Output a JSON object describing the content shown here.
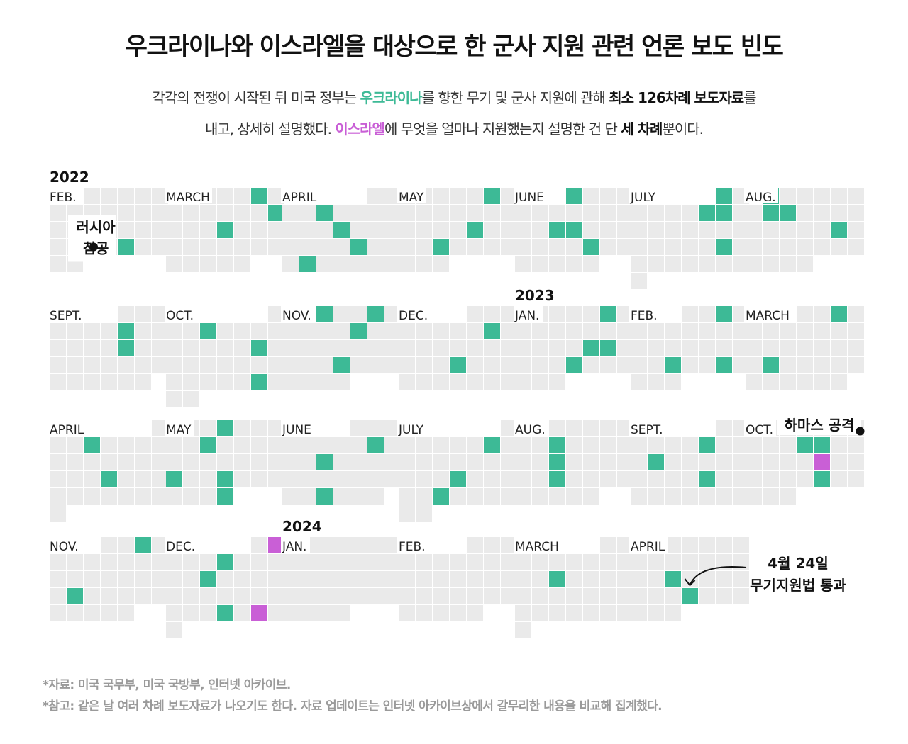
{
  "title": "우크라이나와 이스라엘을 대상으로 한 군사 지원 관련 언론 보도 빈도",
  "subtitle": {
    "l1_a": "각각의 전쟁이 시작된 뒤 미국 정부는 ",
    "l1_b": "우크라이나",
    "l1_c": "를 향한 무기 및 군사 지원에 관해 ",
    "l1_d": "최소 126차례 보도자료",
    "l1_e": "를",
    "l2_a": "내고, 상세히 설명했다. ",
    "l2_b": "이스라엘",
    "l2_c": "에 무엇을 얼마나 지원했는지 설명한 건 단 ",
    "l2_d": "세 차례",
    "l2_e": "뿐이다."
  },
  "colors": {
    "ukraine": "#3dba96",
    "israel": "#c95fd6",
    "empty": "#eaeaea",
    "background": "#ffffff"
  },
  "chart_data": {
    "type": "heatmap",
    "description_note": "Calendar heatmap; each month is a Sun-first week grid of days; green = Ukraine press release day, purple = Israel press release day",
    "series": [
      {
        "name": "우크라이나",
        "color": "#3dba96"
      },
      {
        "name": "이스라엘",
        "color": "#c95fd6"
      }
    ],
    "months": [
      {
        "label": "FEB.",
        "year": 2022,
        "month": 2,
        "year_label": "2022",
        "ukraine": [
          24
        ],
        "israel": []
      },
      {
        "label": "MARCH",
        "year": 2022,
        "month": 3,
        "ukraine": [
          4,
          12,
          16
        ],
        "israel": []
      },
      {
        "label": "APRIL",
        "year": 2022,
        "month": 4,
        "ukraine": [
          5,
          13,
          21,
          25
        ],
        "israel": []
      },
      {
        "label": "MAY",
        "year": 2022,
        "month": 5,
        "ukraine": [
          6,
          19,
          24
        ],
        "israel": []
      },
      {
        "label": "JUNE",
        "year": 2022,
        "month": 6,
        "ukraine": [
          1,
          14,
          15,
          23
        ],
        "israel": []
      },
      {
        "label": "JULY",
        "year": 2022,
        "month": 7,
        "ukraine": [
          1,
          7,
          8,
          22
        ],
        "israel": []
      },
      {
        "label": "AUG.",
        "year": 2022,
        "month": 8,
        "ukraine": [
          1,
          8,
          9,
          19
        ],
        "israel": []
      },
      {
        "label": "SEPT.",
        "year": 2022,
        "month": 9,
        "ukraine": [
          8,
          15
        ],
        "israel": []
      },
      {
        "label": "OCT.",
        "year": 2022,
        "month": 10,
        "ukraine": [
          4,
          14,
          28
        ],
        "israel": []
      },
      {
        "label": "NOV.",
        "year": 2022,
        "month": 11,
        "ukraine": [
          1,
          4,
          10,
          23
        ],
        "israel": []
      },
      {
        "label": "DEC.",
        "year": 2022,
        "month": 12,
        "ukraine": [
          9,
          21
        ],
        "israel": []
      },
      {
        "label": "JAN.",
        "year": 2023,
        "month": 1,
        "year_label": "2023",
        "ukraine": [
          6,
          19,
          20,
          25
        ],
        "israel": []
      },
      {
        "label": "FEB.",
        "year": 2023,
        "month": 2,
        "ukraine": [
          3,
          21,
          24
        ],
        "israel": []
      },
      {
        "label": "MARCH",
        "year": 2023,
        "month": 3,
        "ukraine": [
          3,
          20
        ],
        "israel": []
      },
      {
        "label": "APRIL",
        "year": 2023,
        "month": 4,
        "ukraine": [
          4,
          19
        ],
        "israel": []
      },
      {
        "label": "MAY",
        "year": 2023,
        "month": 5,
        "ukraine": [
          3,
          9,
          21,
          24,
          31
        ],
        "israel": []
      },
      {
        "label": "JUNE",
        "year": 2023,
        "month": 6,
        "ukraine": [
          9,
          13,
          27
        ],
        "israel": []
      },
      {
        "label": "JULY",
        "year": 2023,
        "month": 7,
        "ukraine": [
          7,
          19,
          25
        ],
        "israel": []
      },
      {
        "label": "AUG.",
        "year": 2023,
        "month": 8,
        "ukraine": [
          8,
          15,
          22
        ],
        "israel": []
      },
      {
        "label": "SEPT.",
        "year": 2023,
        "month": 9,
        "ukraine": [
          7,
          11,
          21
        ],
        "israel": []
      },
      {
        "label": "OCT.",
        "year": 2023,
        "month": 10,
        "ukraine": [
          11,
          12,
          26
        ],
        "israel": [
          19
        ]
      },
      {
        "label": "NOV.",
        "year": 2023,
        "month": 11,
        "ukraine": [
          3,
          20
        ],
        "israel": []
      },
      {
        "label": "DEC.",
        "year": 2023,
        "month": 12,
        "ukraine": [
          6,
          12,
          27
        ],
        "israel": [
          2,
          29
        ]
      },
      {
        "label": "JAN.",
        "year": 2024,
        "month": 1,
        "year_label": "2024",
        "ukraine": [],
        "israel": []
      },
      {
        "label": "FEB.",
        "year": 2024,
        "month": 2,
        "ukraine": [],
        "israel": []
      },
      {
        "label": "MARCH",
        "year": 2024,
        "month": 3,
        "ukraine": [
          12
        ],
        "israel": []
      },
      {
        "label": "APRIL",
        "year": 2024,
        "month": 4,
        "ukraine": [
          16,
          24
        ],
        "israel": []
      }
    ],
    "annotations": [
      {
        "month_index": 0,
        "day": 24,
        "text": [
          "러시아",
          "침공"
        ]
      },
      {
        "month_index": 20,
        "day": 7,
        "text": [
          "하마스 공격"
        ]
      },
      {
        "month_index": 26,
        "day": 24,
        "text": [
          "4월 24일",
          "무기지원법 통과"
        ]
      }
    ]
  },
  "footnotes": [
    "*자료: 미국 국무부, 미국 국방부, 인터넷 아카이브.",
    "*참고: 같은 날 여러 차례 보도자료가 나오기도 한다. 자료 업데이트는 인터넷 아카이브상에서 갈무리한 내용을 비교해 집계했다."
  ]
}
